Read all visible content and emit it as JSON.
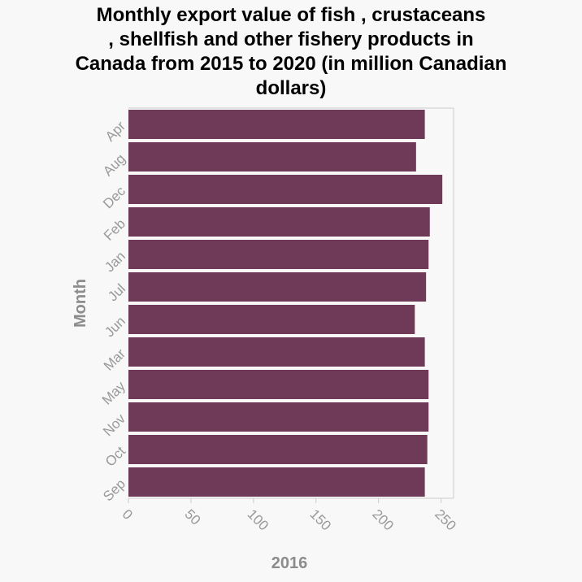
{
  "chart_data": {
    "type": "bar",
    "orientation": "horizontal",
    "title": "Monthly export value of fish , crustaceans , shellfish and other fishery products in Canada from 2015 to 2020 (in million Canadian dollars)",
    "title_lines": [
      "Monthly export value of fish , crustaceans",
      ", shellfish and other fishery products in",
      "Canada from 2015 to 2020 (in million Canadian",
      "dollars)"
    ],
    "categories": [
      "Apr",
      "Aug",
      "Dec",
      "Feb",
      "Jan",
      "Jul",
      "Jun",
      "Mar",
      "May",
      "Nov",
      "Oct",
      "Sep"
    ],
    "values": [
      237,
      230,
      251,
      241,
      240,
      238,
      229,
      237,
      240,
      240,
      239,
      237
    ],
    "xlabel": "2016",
    "ylabel": "Month",
    "xlim": [
      0,
      260
    ],
    "xticks": [
      0,
      50,
      100,
      150,
      200,
      250
    ],
    "grid": false,
    "bar_color": "#6e3a58"
  }
}
